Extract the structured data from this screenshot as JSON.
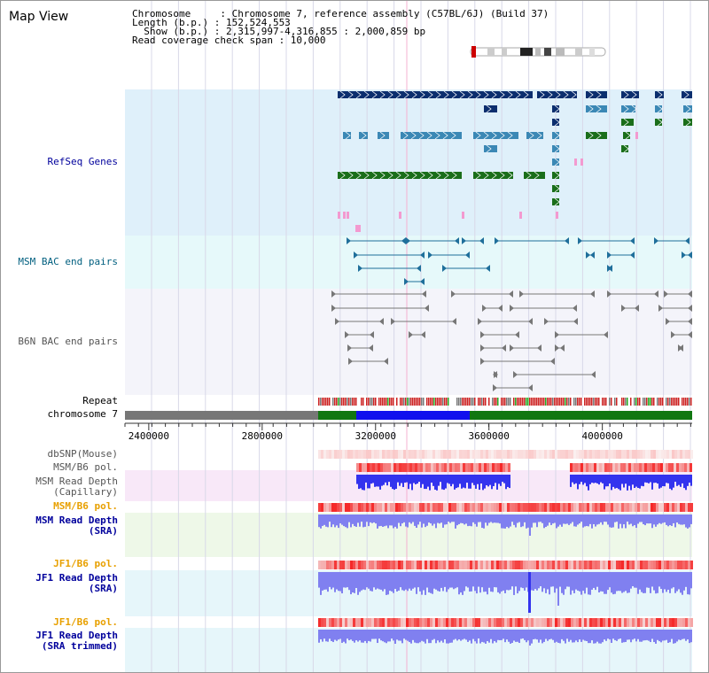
{
  "page_title": "Map View",
  "header": {
    "chromosome_line": "Chromosome     : Chromosome 7, reference assembly (C57BL/6J) (Build 37)",
    "length_line": "Length (b.p.) : 152,524,553",
    "show_line": "  Show (b.p.) : 2,315,997-4,316,855 : 2,000,859 bp",
    "coverage_line": "Read coverage check span : 10,000"
  },
  "view": {
    "start_bp": 2315997,
    "end_bp": 4316855,
    "length_bp": 2000859
  },
  "track_labels": {
    "refseq": "RefSeq Genes",
    "msm_bac": "MSM BAC end pairs",
    "b6n_bac": "B6N BAC end pairs",
    "repeat": "Repeat",
    "chromosome": "chromosome 7",
    "dbsnp": "dbSNP(Mouse)",
    "msm_b6_pol": "MSM/B6 pol.",
    "msm_depth_cap": "MSM Read Depth\n(Capillary)",
    "msm_b6_pol_sra": "MSM/B6 pol.",
    "msm_depth_sra": "MSM Read Depth\n(SRA)",
    "jf1_b6_pol": "JF1/B6 pol.",
    "jf1_depth_sra": "JF1 Read Depth\n(SRA)",
    "jf1_b6_pol_trim": "JF1/B6 pol.",
    "jf1_depth_trim": "JF1 Read Depth\n(SRA trimmed)"
  },
  "axis_ticks": [
    "2400000",
    "2800000",
    "3200000",
    "3600000",
    "4000000"
  ],
  "colors": {
    "refseq_bg": "#dff0fa",
    "msm_bac_bg": "#e6f9fa",
    "b6n_bac_bg": "#f4f4fa",
    "label_blue": "#00009c",
    "label_teal": "#005f7f",
    "label_orange": "#e8a000",
    "gene_dark": "#0b2e6e",
    "gene_mid": "#3b88b5",
    "gene_green": "#1a6e1a",
    "gene_pink": "#f39ad0",
    "msm_bac": "#1f6f9b",
    "b6n_bac": "#777777",
    "depth_blue": "#3333ee",
    "depth_light": "#8080f0",
    "pol_red": "#ee3030"
  },
  "icons": {
    "chromosome_ideogram": "chromosome-ideogram-icon"
  }
}
